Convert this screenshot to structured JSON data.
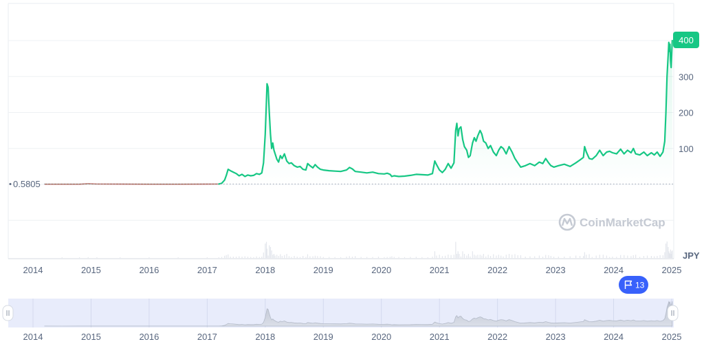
{
  "chart_data": {
    "type": "area",
    "title": "",
    "xlabel": "",
    "ylabel": "",
    "currency": "JPY",
    "start_label": "0.5805",
    "current_price_label": "400",
    "watermark": "CoinMarketCap",
    "event_flag_count": "13",
    "x_ticks": [
      "2014",
      "2015",
      "2016",
      "2017",
      "2018",
      "2019",
      "2020",
      "2021",
      "2022",
      "2023",
      "2024",
      "2025"
    ],
    "navigator_ticks": [
      "2014",
      "2015",
      "2016",
      "2017",
      "2018",
      "2019",
      "2020",
      "2021",
      "2022",
      "2023",
      "2024",
      "2025"
    ],
    "y_ticks": [
      100,
      200,
      300,
      400
    ],
    "y_tick_labels": [
      "100",
      "200",
      "300",
      "400"
    ],
    "ylim": [
      -100,
      510
    ],
    "xlim": [
      2014.0,
      2025.0
    ],
    "grid": true,
    "colors": {
      "line": "#16c784",
      "line_below_start": "#ea3943",
      "price_badge": "#16c784",
      "flag": "#3861fb",
      "navigator_bg": "#e8ecfb"
    },
    "series": [
      {
        "values": [
          [
            2014.2,
            0.58
          ],
          [
            2014.5,
            0.5
          ],
          [
            2014.8,
            0.6
          ],
          [
            2014.95,
            1.5
          ],
          [
            2015.1,
            0.9
          ],
          [
            2015.5,
            0.7
          ],
          [
            2016.0,
            0.6
          ],
          [
            2016.5,
            0.6
          ],
          [
            2017.0,
            0.7
          ],
          [
            2017.2,
            0.9
          ],
          [
            2017.25,
            3
          ],
          [
            2017.3,
            12
          ],
          [
            2017.33,
            25
          ],
          [
            2017.36,
            42
          ],
          [
            2017.4,
            38
          ],
          [
            2017.45,
            34
          ],
          [
            2017.5,
            30
          ],
          [
            2017.55,
            24
          ],
          [
            2017.6,
            28
          ],
          [
            2017.65,
            22
          ],
          [
            2017.7,
            26
          ],
          [
            2017.75,
            24
          ],
          [
            2017.8,
            25
          ],
          [
            2017.85,
            30
          ],
          [
            2017.9,
            28
          ],
          [
            2017.94,
            32
          ],
          [
            2017.97,
            60
          ],
          [
            2018.0,
            140
          ],
          [
            2018.02,
            230
          ],
          [
            2018.03,
            280
          ],
          [
            2018.05,
            270
          ],
          [
            2018.07,
            200
          ],
          [
            2018.09,
            140
          ],
          [
            2018.11,
            100
          ],
          [
            2018.13,
            115
          ],
          [
            2018.15,
            95
          ],
          [
            2018.17,
            85
          ],
          [
            2018.2,
            70
          ],
          [
            2018.23,
            62
          ],
          [
            2018.26,
            80
          ],
          [
            2018.29,
            72
          ],
          [
            2018.33,
            85
          ],
          [
            2018.37,
            65
          ],
          [
            2018.41,
            58
          ],
          [
            2018.45,
            60
          ],
          [
            2018.5,
            52
          ],
          [
            2018.55,
            48
          ],
          [
            2018.6,
            50
          ],
          [
            2018.65,
            42
          ],
          [
            2018.7,
            40
          ],
          [
            2018.73,
            58
          ],
          [
            2018.77,
            52
          ],
          [
            2018.82,
            46
          ],
          [
            2018.86,
            55
          ],
          [
            2018.9,
            48
          ],
          [
            2018.95,
            42
          ],
          [
            2019.0,
            40
          ],
          [
            2019.1,
            38
          ],
          [
            2019.2,
            37
          ],
          [
            2019.3,
            36
          ],
          [
            2019.4,
            40
          ],
          [
            2019.45,
            47
          ],
          [
            2019.5,
            43
          ],
          [
            2019.55,
            36
          ],
          [
            2019.65,
            34
          ],
          [
            2019.75,
            32
          ],
          [
            2019.85,
            34
          ],
          [
            2019.95,
            30
          ],
          [
            2020.05,
            29
          ],
          [
            2020.1,
            31
          ],
          [
            2020.15,
            28
          ],
          [
            2020.18,
            22
          ],
          [
            2020.22,
            24
          ],
          [
            2020.3,
            22
          ],
          [
            2020.4,
            23
          ],
          [
            2020.5,
            25
          ],
          [
            2020.6,
            28
          ],
          [
            2020.7,
            27
          ],
          [
            2020.8,
            26
          ],
          [
            2020.88,
            30
          ],
          [
            2020.92,
            65
          ],
          [
            2020.95,
            55
          ],
          [
            2021.0,
            40
          ],
          [
            2021.05,
            33
          ],
          [
            2021.1,
            42
          ],
          [
            2021.15,
            58
          ],
          [
            2021.2,
            45
          ],
          [
            2021.25,
            60
          ],
          [
            2021.28,
            150
          ],
          [
            2021.3,
            170
          ],
          [
            2021.32,
            135
          ],
          [
            2021.34,
            155
          ],
          [
            2021.37,
            160
          ],
          [
            2021.4,
            125
          ],
          [
            2021.43,
            105
          ],
          [
            2021.47,
            95
          ],
          [
            2021.5,
            75
          ],
          [
            2021.53,
            80
          ],
          [
            2021.57,
            115
          ],
          [
            2021.6,
            130
          ],
          [
            2021.63,
            120
          ],
          [
            2021.66,
            135
          ],
          [
            2021.7,
            150
          ],
          [
            2021.73,
            140
          ],
          [
            2021.76,
            120
          ],
          [
            2021.8,
            115
          ],
          [
            2021.84,
            100
          ],
          [
            2021.88,
            108
          ],
          [
            2021.93,
            90
          ],
          [
            2021.98,
            80
          ],
          [
            2022.02,
            95
          ],
          [
            2022.06,
            105
          ],
          [
            2022.1,
            100
          ],
          [
            2022.15,
            85
          ],
          [
            2022.2,
            105
          ],
          [
            2022.25,
            90
          ],
          [
            2022.3,
            72
          ],
          [
            2022.35,
            60
          ],
          [
            2022.4,
            48
          ],
          [
            2022.48,
            52
          ],
          [
            2022.56,
            58
          ],
          [
            2022.64,
            52
          ],
          [
            2022.72,
            62
          ],
          [
            2022.78,
            58
          ],
          [
            2022.83,
            72
          ],
          [
            2022.88,
            60
          ],
          [
            2022.92,
            52
          ],
          [
            2022.97,
            48
          ],
          [
            2023.05,
            52
          ],
          [
            2023.15,
            56
          ],
          [
            2023.25,
            50
          ],
          [
            2023.35,
            60
          ],
          [
            2023.42,
            68
          ],
          [
            2023.48,
            75
          ],
          [
            2023.5,
            105
          ],
          [
            2023.53,
            90
          ],
          [
            2023.58,
            72
          ],
          [
            2023.63,
            70
          ],
          [
            2023.7,
            80
          ],
          [
            2023.76,
            95
          ],
          [
            2023.82,
            80
          ],
          [
            2023.88,
            90
          ],
          [
            2023.93,
            92
          ],
          [
            2023.98,
            88
          ],
          [
            2024.05,
            85
          ],
          [
            2024.12,
            98
          ],
          [
            2024.18,
            85
          ],
          [
            2024.24,
            95
          ],
          [
            2024.3,
            88
          ],
          [
            2024.34,
            100
          ],
          [
            2024.38,
            85
          ],
          [
            2024.45,
            82
          ],
          [
            2024.52,
            90
          ],
          [
            2024.58,
            80
          ],
          [
            2024.65,
            88
          ],
          [
            2024.7,
            82
          ],
          [
            2024.75,
            90
          ],
          [
            2024.8,
            78
          ],
          [
            2024.85,
            90
          ],
          [
            2024.88,
            120
          ],
          [
            2024.9,
            200
          ],
          [
            2024.92,
            300
          ],
          [
            2024.94,
            360
          ],
          [
            2024.95,
            395
          ],
          [
            2024.96,
            370
          ],
          [
            2024.97,
            390
          ],
          [
            2024.98,
            345
          ],
          [
            2024.99,
            325
          ],
          [
            2025.0,
            360
          ],
          [
            2025.01,
            400
          ]
        ]
      }
    ]
  }
}
